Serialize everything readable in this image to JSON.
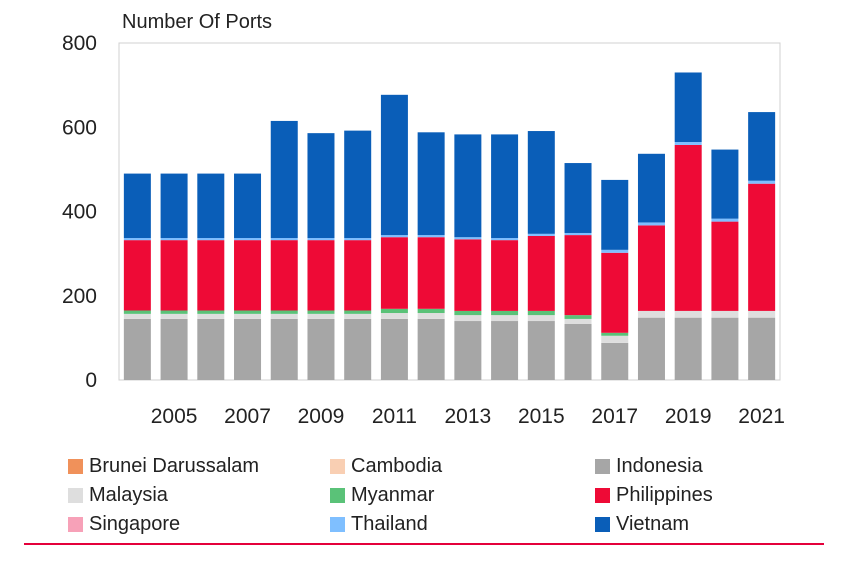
{
  "chart_data": {
    "type": "bar",
    "stacked": true,
    "ylabel": "Number Of Ports",
    "ylim": [
      0,
      800
    ],
    "yticks": [
      0,
      200,
      400,
      600,
      800
    ],
    "x": [
      2004,
      2005,
      2006,
      2007,
      2008,
      2009,
      2010,
      2011,
      2012,
      2013,
      2014,
      2015,
      2016,
      2017,
      2018,
      2019,
      2020,
      2021
    ],
    "xtick_labels": [
      "2005",
      "2007",
      "2009",
      "2011",
      "2013",
      "2015",
      "2017",
      "2019",
      "2021"
    ],
    "xtick_values": [
      2005,
      2007,
      2009,
      2011,
      2013,
      2015,
      2017,
      2019,
      2021
    ],
    "grid": false,
    "legend_position": "bottom",
    "series": [
      {
        "name": "Brunei Darussalam",
        "color": "#f0915a",
        "values": [
          0,
          0,
          0,
          0,
          0,
          0,
          0,
          0,
          0,
          0,
          0,
          0,
          0,
          0,
          0,
          0,
          0,
          0
        ]
      },
      {
        "name": "Cambodia",
        "color": "#f9cfb3",
        "values": [
          0,
          0,
          0,
          0,
          0,
          0,
          0,
          0,
          0,
          0,
          0,
          0,
          0,
          0,
          0,
          0,
          0,
          0
        ]
      },
      {
        "name": "Indonesia",
        "color": "#a6a6a6",
        "values": [
          145,
          145,
          145,
          145,
          145,
          145,
          145,
          145,
          145,
          140,
          140,
          140,
          133,
          88,
          148,
          148,
          148,
          148
        ]
      },
      {
        "name": "Malaysia",
        "color": "#dedede",
        "values": [
          12,
          12,
          12,
          12,
          12,
          12,
          12,
          14,
          14,
          14,
          14,
          14,
          12,
          17,
          16,
          16,
          16,
          16
        ]
      },
      {
        "name": "Myanmar",
        "color": "#5ac278",
        "values": [
          8,
          8,
          8,
          8,
          8,
          8,
          8,
          10,
          10,
          10,
          10,
          10,
          9,
          7,
          0,
          0,
          0,
          0
        ]
      },
      {
        "name": "Philippines",
        "color": "#ee0a36",
        "values": [
          167,
          167,
          167,
          167,
          167,
          167,
          167,
          170,
          170,
          170,
          168,
          178,
          190,
          190,
          203,
          394,
          212,
          302
        ]
      },
      {
        "name": "Singapore",
        "color": "#f7a1b8",
        "values": [
          0,
          0,
          0,
          0,
          0,
          0,
          0,
          0,
          0,
          0,
          0,
          0,
          0,
          0,
          0,
          0,
          0,
          0
        ]
      },
      {
        "name": "Thailand",
        "color": "#7fbfff",
        "values": [
          5,
          5,
          5,
          5,
          5,
          5,
          5,
          5,
          5,
          5,
          5,
          5,
          5,
          7,
          7,
          7,
          7,
          7
        ]
      },
      {
        "name": "Vietnam",
        "color": "#0a5eb8",
        "values": [
          153,
          153,
          153,
          153,
          278,
          249,
          255,
          333,
          244,
          244,
          246,
          244,
          166,
          166,
          163,
          165,
          164,
          163
        ]
      }
    ],
    "legend_layout": [
      [
        "Brunei Darussalam",
        "Cambodia",
        "Indonesia"
      ],
      [
        "Malaysia",
        "Myanmar",
        "Philippines"
      ],
      [
        "Singapore",
        "Thailand",
        "Vietnam"
      ]
    ]
  }
}
